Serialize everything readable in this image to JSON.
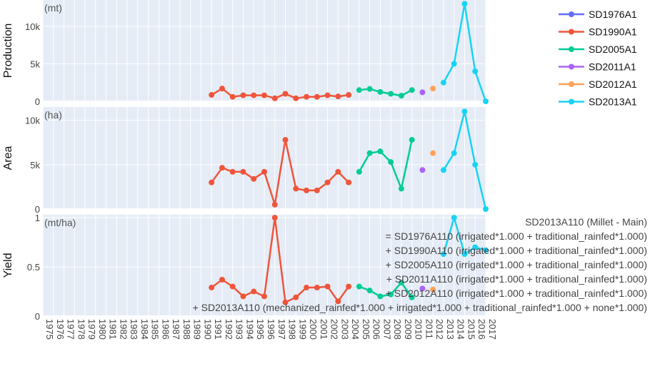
{
  "chart_data": {
    "type": "line",
    "x": [
      1975,
      1976,
      1977,
      1978,
      1979,
      1980,
      1981,
      1982,
      1983,
      1984,
      1985,
      1986,
      1987,
      1988,
      1989,
      1990,
      1991,
      1992,
      1993,
      1994,
      1995,
      1996,
      1997,
      1998,
      1999,
      2000,
      2001,
      2002,
      2003,
      2004,
      2005,
      2006,
      2007,
      2008,
      2009,
      2010,
      2011,
      2012,
      2013,
      2014,
      2015,
      2016,
      2017
    ],
    "x_tick_labels": [
      "1975",
      "1976",
      "1977",
      "1978",
      "1979",
      "1980",
      "1981",
      "1982",
      "1983",
      "1984",
      "1985",
      "1986",
      "1987",
      "1988",
      "1989",
      "1990",
      "1991",
      "1992",
      "1993",
      "1994",
      "1995",
      "1996",
      "1997",
      "1998",
      "1999",
      "2000",
      "2001",
      "2002",
      "2003",
      "2004",
      "2005",
      "2006",
      "2007",
      "2008",
      "2009",
      "2010",
      "2011",
      "2012",
      "2013",
      "2014",
      "2015",
      "2016",
      "2017"
    ],
    "xlim": [
      1975,
      2017
    ],
    "legend": {
      "position": "top-right"
    },
    "panels": [
      {
        "key": "production",
        "ylabel": "Production",
        "unit": "(mt)",
        "ylim": [
          0,
          13500
        ],
        "yticks": [
          0,
          5000,
          10000
        ],
        "ytick_labels": [
          "0",
          "5k",
          "10k"
        ]
      },
      {
        "key": "area",
        "ylabel": "Area",
        "unit": "(ha)",
        "ylim": [
          0,
          11500
        ],
        "yticks": [
          0,
          5000,
          10000
        ],
        "ytick_labels": [
          "0",
          "5k",
          "10k"
        ]
      },
      {
        "key": "yield",
        "ylabel": "Yield",
        "unit": "(mt/ha)",
        "ylim": [
          0,
          1.03
        ],
        "yticks": [
          0,
          0.5,
          1
        ],
        "ytick_labels": [
          "0",
          "0.5",
          "1"
        ]
      }
    ],
    "series": [
      {
        "name": "SD1976A1",
        "color": "#636efa",
        "x": [],
        "production": [],
        "area": [],
        "yield": []
      },
      {
        "name": "SD1990A1",
        "color": "#ef553b",
        "x": [
          1991,
          1992,
          1993,
          1994,
          1995,
          1996,
          1997,
          1998,
          1999,
          2000,
          2001,
          2002,
          2003,
          2004
        ],
        "production": [
          850,
          1700,
          600,
          800,
          800,
          800,
          400,
          1000,
          400,
          600,
          600,
          800,
          650,
          850
        ],
        "area": [
          3000,
          4650,
          4200,
          4200,
          3400,
          4200,
          500,
          7800,
          2300,
          2100,
          2100,
          3000,
          4200,
          3000
        ],
        "yield": [
          0.29,
          0.37,
          0.3,
          0.2,
          0.25,
          0.2,
          1.0,
          0.14,
          0.19,
          0.29,
          0.29,
          0.3,
          0.15,
          0.3
        ]
      },
      {
        "name": "SD2005A1",
        "color": "#00cc96",
        "x": [
          2005,
          2006,
          2007,
          2008,
          2009,
          2010
        ],
        "production": [
          1500,
          1650,
          1250,
          1000,
          750,
          1500
        ],
        "area": [
          4200,
          6300,
          6500,
          5300,
          2300,
          7800
        ],
        "yield": [
          0.3,
          0.26,
          0.2,
          0.22,
          0.34,
          0.19
        ]
      },
      {
        "name": "SD2011A1",
        "color": "#ab63fa",
        "x": [
          2011
        ],
        "production": [
          1200
        ],
        "area": [
          4400
        ],
        "yield": [
          0.28
        ]
      },
      {
        "name": "SD2012A1",
        "color": "#ffa15a",
        "x": [
          2012
        ],
        "production": [
          1700
        ],
        "area": [
          6300
        ],
        "yield": [
          0.27
        ]
      },
      {
        "name": "SD2013A1",
        "color": "#19d3f3",
        "x": [
          2013,
          2014,
          2015,
          2016,
          2017
        ],
        "production": [
          2500,
          5000,
          13000,
          4000,
          0
        ],
        "area": [
          4400,
          6300,
          11000,
          5000,
          0
        ],
        "yield": [
          0.63,
          1.0,
          0.63,
          0.7,
          0.67
        ]
      }
    ],
    "annotation": [
      "SD2013A110 (Millet - Main)",
      "= SD1976A110 (irrigated*1.000 + traditional_rainfed*1.000)",
      "+ SD1990A110 (irrigated*1.000 + traditional_rainfed*1.000)",
      "+ SD2005A110 (irrigated*1.000 + traditional_rainfed*1.000)",
      "+ SD2011A110 (irrigated*1.000 + traditional_rainfed*1.000)",
      "+ SD2012A110 (irrigated*1.000 + traditional_rainfed*1.000)",
      "+ SD2013A110 (mechanized_rainfed*1.000 + irrigated*1.000 + traditional_rainfed*1.000 + none*1.000)"
    ]
  }
}
